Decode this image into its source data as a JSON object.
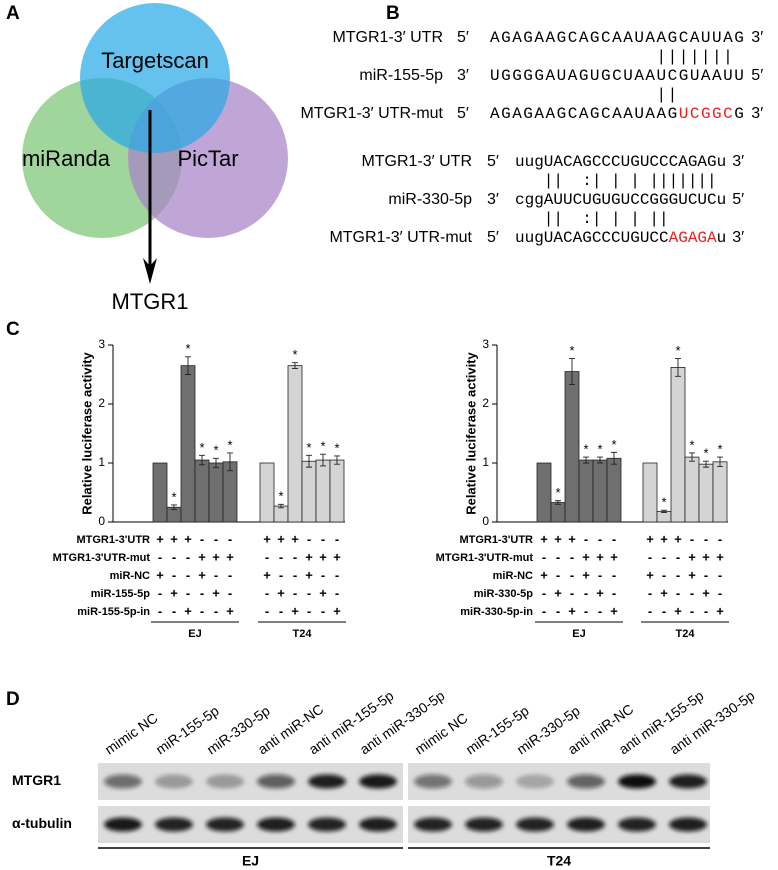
{
  "panel_labels": [
    "A",
    "B",
    "C",
    "D"
  ],
  "panel_a": {
    "databases": [
      {
        "name": "miRanda",
        "color": "#7cc576"
      },
      {
        "name": "PicTar",
        "color": "#a783c6"
      },
      {
        "name": "Targetscan",
        "color": "#29a9e6"
      }
    ],
    "result": "MTGR1"
  },
  "panel_b": {
    "alignments": [
      {
        "rows": [
          {
            "label": "MTGR1-3′ UTR",
            "label_color": "#000000",
            "left_end": "5′",
            "segments": [
              {
                "text": "AGAGAAGCAGCAAUAAGCAUUAG",
                "color": "#000000"
              }
            ],
            "right_end": "3′"
          },
          {
            "pairing": "               ||||||| "
          },
          {
            "label": "miR-155-5p",
            "label_color": "#e8201e",
            "left_end": "3′",
            "segments": [
              {
                "text": "UGGGGAUAGUGCUAAUCGUAAUU",
                "color": "#000000"
              }
            ],
            "right_end": "5′"
          },
          {
            "pairing": "               ||      "
          },
          {
            "label": "MTGR1-3′ UTR-mut",
            "label_color": "#000000",
            "left_end": "5′",
            "segments": [
              {
                "text": "AGAGAAGCAGCAAUAAG",
                "color": "#000000"
              },
              {
                "text": "UCGGC",
                "color": "#e8201e"
              },
              {
                "text": "G",
                "color": "#000000"
              }
            ],
            "right_end": "3′"
          }
        ]
      },
      {
        "rows": [
          {
            "label": "MTGR1-3′ UTR",
            "label_color": "#000000",
            "left_end": "5′",
            "segments": [
              {
                "text": "uugUACAGCCCUGUCCCAGAGu",
                "color": "#000000"
              }
            ],
            "right_end": "3′"
          },
          {
            "pairing": "   ||  :| | | ||||||| "
          },
          {
            "label": "miR-330-5p",
            "label_color": "#e8201e",
            "left_end": "3′",
            "segments": [
              {
                "text": "cggAUUCUGUGUCCGGGUCUCu",
                "color": "#000000"
              }
            ],
            "right_end": "5′"
          },
          {
            "pairing": "   ||  :| | | ||      "
          },
          {
            "label": "MTGR1-3′ UTR-mut",
            "label_color": "#000000",
            "left_end": "5′",
            "segments": [
              {
                "text": "uugUACAGCCCUGUCC",
                "color": "#000000"
              },
              {
                "text": "AGAGA",
                "color": "#e8201e"
              },
              {
                "text": "u",
                "color": "#000000"
              }
            ],
            "right_end": "3′"
          }
        ]
      }
    ]
  },
  "chart_data": [
    {
      "type": "bar",
      "y_label": "Relative luciferase activity",
      "ylim": [
        0,
        3
      ],
      "yticks": [
        0,
        1,
        2,
        3
      ],
      "series": [
        {
          "name": "EJ",
          "color": "#6f6f6f",
          "values": [
            1,
            0.25,
            2.65,
            1.05,
            1,
            1.02
          ],
          "errors": [
            null,
            0.04,
            0.15,
            0.08,
            0.08,
            0.15
          ],
          "significance": [
            null,
            "*",
            "*",
            "*",
            "*",
            "*"
          ]
        },
        {
          "name": "T24",
          "color": "#d4d4d4",
          "values": [
            1,
            0.27,
            2.65,
            1.03,
            1.05,
            1.05
          ],
          "errors": [
            null,
            0.03,
            0.05,
            0.1,
            0.1,
            0.07
          ],
          "significance": [
            null,
            "*",
            "*",
            "*",
            "*",
            "*"
          ]
        }
      ],
      "conditions": [
        {
          "label": "MTGR1-3'UTR",
          "signs": [
            "+",
            "+",
            "+",
            "-",
            "-",
            "-",
            "+",
            "+",
            "+",
            "-",
            "-",
            "-"
          ]
        },
        {
          "label": "MTGR1-3'UTR-mut",
          "signs": [
            "-",
            "-",
            "-",
            "+",
            "+",
            "+",
            "-",
            "-",
            "-",
            "+",
            "+",
            "+"
          ]
        },
        {
          "label": "miR-NC",
          "signs": [
            "+",
            "-",
            "-",
            "+",
            "-",
            "-",
            "+",
            "-",
            "-",
            "+",
            "-",
            "-"
          ]
        },
        {
          "label": "miR-155-5p",
          "signs": [
            "-",
            "+",
            "-",
            "-",
            "+",
            "-",
            "-",
            "+",
            "-",
            "-",
            "+",
            "-"
          ]
        },
        {
          "label": "miR-155-5p-in",
          "signs": [
            "-",
            "-",
            "+",
            "-",
            "-",
            "+",
            "-",
            "-",
            "+",
            "-",
            "-",
            "+"
          ]
        }
      ]
    },
    {
      "type": "bar",
      "y_label": "Relative luciferase activity",
      "ylim": [
        0,
        3
      ],
      "yticks": [
        0,
        1,
        2,
        3
      ],
      "series": [
        {
          "name": "EJ",
          "color": "#6f6f6f",
          "values": [
            1,
            0.33,
            2.55,
            1.05,
            1.05,
            1.08
          ],
          "errors": [
            null,
            0.03,
            0.22,
            0.05,
            0.05,
            0.1
          ],
          "significance": [
            null,
            "*",
            "*",
            "*",
            "*",
            "*"
          ]
        },
        {
          "name": "T24",
          "color": "#d4d4d4",
          "values": [
            1,
            0.18,
            2.62,
            1.1,
            0.98,
            1.02
          ],
          "errors": [
            null,
            0.02,
            0.15,
            0.07,
            0.05,
            0.08
          ],
          "significance": [
            null,
            "*",
            "*",
            "*",
            "*",
            "*"
          ]
        }
      ],
      "conditions": [
        {
          "label": "MTGR1-3'UTR",
          "signs": [
            "+",
            "+",
            "+",
            "-",
            "-",
            "-",
            "+",
            "+",
            "+",
            "-",
            "-",
            "-"
          ]
        },
        {
          "label": "MTGR1-3'UTR-mut",
          "signs": [
            "-",
            "-",
            "-",
            "+",
            "+",
            "+",
            "-",
            "-",
            "-",
            "+",
            "+",
            "+"
          ]
        },
        {
          "label": "miR-NC",
          "signs": [
            "+",
            "-",
            "-",
            "+",
            "-",
            "-",
            "+",
            "-",
            "-",
            "+",
            "-",
            "-"
          ]
        },
        {
          "label": "miR-330-5p",
          "signs": [
            "-",
            "+",
            "-",
            "-",
            "+",
            "-",
            "-",
            "+",
            "-",
            "-",
            "+",
            "-"
          ]
        },
        {
          "label": "miR-330-5p-in",
          "signs": [
            "-",
            "-",
            "+",
            "-",
            "-",
            "+",
            "-",
            "-",
            "+",
            "-",
            "-",
            "+"
          ]
        }
      ]
    }
  ],
  "panel_d": {
    "lanes": [
      "mimic NC",
      "miR-155-5p",
      "miR-330-5p",
      "anti miR-NC",
      "anti miR-155-5p",
      "anti miR-330-5p"
    ],
    "rows": [
      "MTGR1",
      "α-tubulin"
    ],
    "groups": [
      "EJ",
      "T24"
    ]
  }
}
